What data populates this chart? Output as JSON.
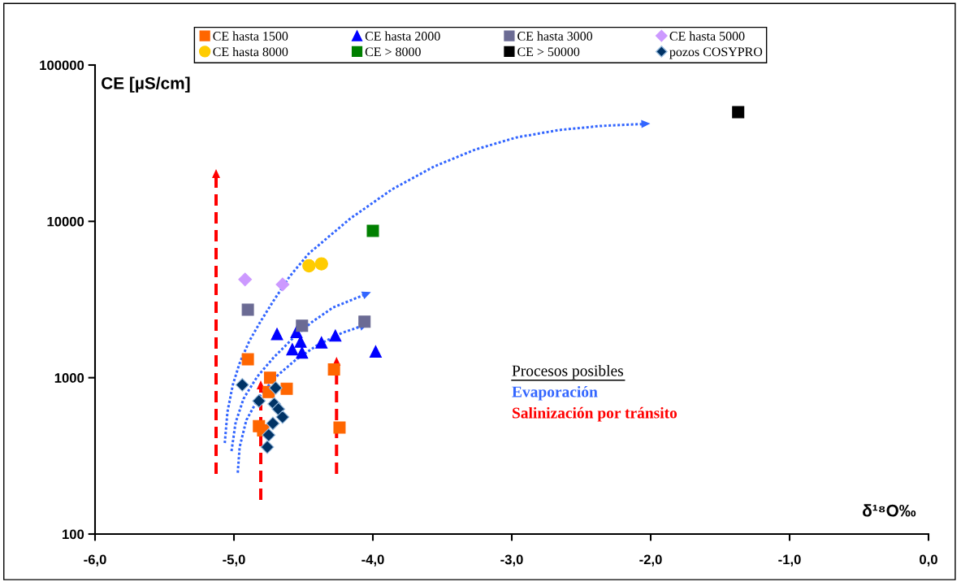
{
  "chart_data": {
    "type": "scatter",
    "xlabel": "δ¹⁸O‰",
    "ylabel": "CE [µS/cm]",
    "annotations": [
      "Procesos posibles",
      "Evaporación",
      "Salinización por tránsito"
    ],
    "xlim": [
      -6,
      0
    ],
    "xticks": [
      {
        "value": -6,
        "label": "-6,0"
      },
      {
        "value": -5,
        "label": "-5,0"
      },
      {
        "value": -4,
        "label": "-4,0"
      },
      {
        "value": -3,
        "label": "-3,0"
      },
      {
        "value": -2,
        "label": "-2,0"
      },
      {
        "value": -1,
        "label": "-1,0"
      },
      {
        "value": 0,
        "label": "0,0"
      }
    ],
    "ylim": [
      100,
      100000
    ],
    "yticks": [
      100,
      1000,
      10000,
      100000
    ],
    "log": "y",
    "grid": false,
    "legend": "top",
    "series": [
      {
        "name": "CE hasta 1500",
        "color": "#ff6600",
        "marker": "square",
        "x": [
          -4.9,
          -4.74,
          -4.75,
          -4.62,
          -4.82,
          -4.79,
          -4.28,
          -4.24
        ],
        "values": [
          1310,
          1000,
          810,
          850,
          490,
          460,
          1130,
          480
        ]
      },
      {
        "name": "CE hasta 2000",
        "color": "#0000ff",
        "marker": "triangle",
        "x": [
          -4.69,
          -4.55,
          -4.52,
          -4.58,
          -4.51,
          -4.37,
          -4.27,
          -3.98
        ],
        "values": [
          1900,
          1960,
          1700,
          1520,
          1450,
          1680,
          1860,
          1470
        ]
      },
      {
        "name": "CE hasta 3000",
        "color": "#6b6b94",
        "marker": "square",
        "x": [
          -4.9,
          -4.51,
          -4.06
        ],
        "values": [
          2720,
          2150,
          2280
        ]
      },
      {
        "name": "CE hasta 5000",
        "color": "#cc99ff",
        "marker": "diamond",
        "x": [
          -4.92,
          -4.65
        ],
        "values": [
          4250,
          3950
        ]
      },
      {
        "name": "CE hasta 8000",
        "color": "#ffcc00",
        "marker": "circle",
        "x": [
          -4.46,
          -4.37
        ],
        "values": [
          5200,
          5350
        ]
      },
      {
        "name": "CE > 8000",
        "color": "#008000",
        "marker": "square",
        "x": [
          -4.0
        ],
        "values": [
          8700
        ]
      },
      {
        "name": "CE > 50000",
        "color": "#000000",
        "marker": "square",
        "x": [
          -1.37
        ],
        "values": [
          50000
        ]
      },
      {
        "name": "pozos COSYPRO",
        "color": "#003366",
        "marker": "diamond",
        "x": [
          -4.94,
          -4.7,
          -4.82,
          -4.71,
          -4.68,
          -4.65,
          -4.72,
          -4.75,
          -4.76
        ],
        "values": [
          900,
          860,
          710,
          680,
          630,
          560,
          510,
          430,
          360
        ]
      }
    ]
  }
}
